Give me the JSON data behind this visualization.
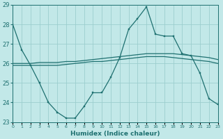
{
  "xlabel": "Humidex (Indice chaleur)",
  "xlim": [
    0,
    23
  ],
  "ylim": [
    23,
    29
  ],
  "yticks": [
    23,
    24,
    25,
    26,
    27,
    28,
    29
  ],
  "background_color": "#c2e8e8",
  "grid_color": "#9ccece",
  "line_color": "#1e7070",
  "line1_y": [
    28.0,
    26.7,
    25.9,
    25.0,
    24.0,
    23.5,
    23.2,
    23.2,
    23.8,
    24.5,
    24.5,
    25.3,
    26.3,
    27.75,
    28.3,
    28.9,
    27.5,
    27.4,
    27.4,
    26.5,
    26.4,
    25.5,
    24.2,
    23.9
  ],
  "line2_y": [
    26.0,
    26.0,
    26.0,
    26.05,
    26.05,
    26.05,
    26.1,
    26.1,
    26.15,
    26.2,
    26.25,
    26.3,
    26.35,
    26.4,
    26.45,
    26.5,
    26.5,
    26.5,
    26.5,
    26.45,
    26.4,
    26.35,
    26.3,
    26.2
  ],
  "line3_y": [
    25.9,
    25.9,
    25.9,
    25.9,
    25.9,
    25.9,
    25.95,
    26.0,
    26.05,
    26.1,
    26.1,
    26.15,
    26.2,
    26.25,
    26.3,
    26.35,
    26.35,
    26.35,
    26.3,
    26.25,
    26.2,
    26.15,
    26.1,
    26.0
  ],
  "xtick_labels": [
    "0",
    "1",
    "2",
    "3",
    "4",
    "5",
    "6",
    "7",
    "8",
    "9",
    "10",
    "11",
    "12",
    "13",
    "14",
    "15",
    "16",
    "17",
    "18",
    "19",
    "20",
    "21",
    "22",
    "23"
  ]
}
